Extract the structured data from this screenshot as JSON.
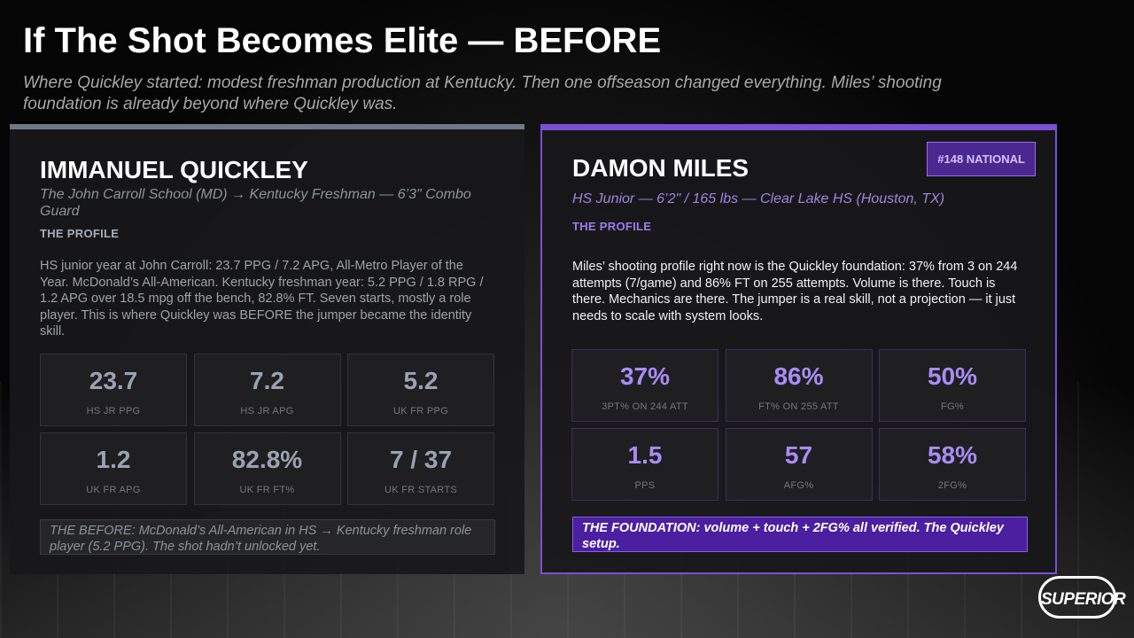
{
  "header": {
    "title": "If The Shot Becomes Elite — BEFORE",
    "subtitle": "Where Quickley started: modest freshman production at Kentucky. Then one offseason changed everything. Miles’ shooting foundation is already beyond where Quickley was."
  },
  "left_card": {
    "name": "IMMANUEL QUICKLEY",
    "subtitle": "The John Carroll School (MD) → Kentucky Freshman — 6’3\" Combo Guard",
    "section_label": "THE PROFILE",
    "body": "HS junior year at John Carroll: 23.7 PPG / 7.2 APG, All-Metro Player of the Year. McDonald’s All-American. Kentucky freshman year: 5.2 PPG / 1.8 RPG / 1.2 APG over 18.5 mpg off the bench, 82.8% FT. Seven starts, mostly a role player. This is where Quickley was BEFORE the jumper became the identity skill.",
    "stats": [
      {
        "value": "23.7",
        "label": "HS JR PPG"
      },
      {
        "value": "7.2",
        "label": "HS JR APG"
      },
      {
        "value": "5.2",
        "label": "UK FR PPG"
      },
      {
        "value": "1.2",
        "label": "UK FR APG"
      },
      {
        "value": "82.8%",
        "label": "UK FR FT%"
      },
      {
        "value": "7 / 37",
        "label": "UK FR STARTS"
      }
    ],
    "note": "THE BEFORE: McDonald’s All-American in HS → Kentucky freshman role player (5.2 PPG). The shot hadn’t unlocked yet."
  },
  "right_card": {
    "badge": "#148 NATIONAL",
    "name": "DAMON MILES",
    "subtitle": "HS Junior — 6’2\" / 165 lbs — Clear Lake HS (Houston, TX)",
    "section_label": "THE PROFILE",
    "body": "Miles’ shooting profile right now is the Quickley foundation: 37% from 3 on 244 attempts (7/game) and 86% FT on 255 attempts. Volume is there. Touch is there. Mechanics are there. The jumper is a real skill, not a projection — it just needs to scale with system looks.",
    "stats": [
      {
        "value": "37%",
        "label": "3PT% ON 244 ATT"
      },
      {
        "value": "86%",
        "label": "FT% ON 255 ATT"
      },
      {
        "value": "50%",
        "label": "FG%"
      },
      {
        "value": "1.5",
        "label": "PPS"
      },
      {
        "value": "57",
        "label": "AFG%"
      },
      {
        "value": "58%",
        "label": "2FG%"
      }
    ],
    "note": "THE FOUNDATION: volume + touch + 2FG% all verified. The Quickley setup."
  },
  "logo": {
    "text": "SUPERIOR"
  }
}
